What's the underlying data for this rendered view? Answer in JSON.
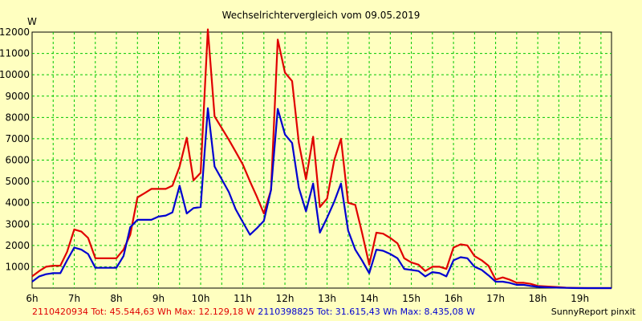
{
  "chart_data": {
    "type": "line",
    "title": "Wechselrichtervergleich vom 09.05.2019",
    "ylabel": "W",
    "xlabel": "",
    "ylim": [
      0,
      12000
    ],
    "xlim": [
      6.0,
      19.75
    ],
    "grid": true,
    "yticks": [
      1000,
      2000,
      3000,
      4000,
      5000,
      6000,
      7000,
      8000,
      9000,
      10000,
      11000,
      12000
    ],
    "xticks": [
      {
        "v": 6,
        "label": "6h"
      },
      {
        "v": 7,
        "label": "7h"
      },
      {
        "v": 8,
        "label": "8h"
      },
      {
        "v": 9,
        "label": "9h"
      },
      {
        "v": 10,
        "label": "10h"
      },
      {
        "v": 11,
        "label": "11h"
      },
      {
        "v": 12,
        "label": "12h"
      },
      {
        "v": 13,
        "label": "13h"
      },
      {
        "v": 14,
        "label": "14h"
      },
      {
        "v": 15,
        "label": "15h"
      },
      {
        "v": 16,
        "label": "16h"
      },
      {
        "v": 17,
        "label": "17h"
      },
      {
        "v": 18,
        "label": "18h"
      },
      {
        "v": 19,
        "label": "19h"
      }
    ],
    "series": [
      {
        "name": "2110420934 Tot: 45.544,63 Wh Max: 12.129,18 W",
        "color": "#e00000",
        "x": [
          6.0,
          6.17,
          6.33,
          6.5,
          6.67,
          6.83,
          7.0,
          7.17,
          7.33,
          7.5,
          7.67,
          7.83,
          8.0,
          8.17,
          8.33,
          8.5,
          8.67,
          8.83,
          9.0,
          9.17,
          9.33,
          9.5,
          9.67,
          9.83,
          10.0,
          10.17,
          10.33,
          10.5,
          10.67,
          10.83,
          11.0,
          11.17,
          11.33,
          11.5,
          11.67,
          11.83,
          12.0,
          12.17,
          12.33,
          12.5,
          12.67,
          12.83,
          13.0,
          13.17,
          13.33,
          13.5,
          13.67,
          13.83,
          14.0,
          14.17,
          14.33,
          14.5,
          14.67,
          14.83,
          15.0,
          15.17,
          15.33,
          15.5,
          15.67,
          15.83,
          16.0,
          16.17,
          16.33,
          16.5,
          16.67,
          16.83,
          17.0,
          17.17,
          17.33,
          17.5,
          17.67,
          17.83,
          18.0,
          18.17,
          18.33,
          18.5,
          18.67,
          18.83,
          19.0,
          19.17,
          19.33,
          19.5,
          19.67,
          19.75
        ],
        "y": [
          550,
          800,
          1000,
          1050,
          1050,
          1700,
          2750,
          2650,
          2350,
          1400,
          1400,
          1400,
          1400,
          1800,
          2500,
          4250,
          4450,
          4650,
          4650,
          4650,
          4800,
          5700,
          7050,
          5050,
          5400,
          12129,
          8050,
          7500,
          6950,
          6400,
          5800,
          5000,
          4300,
          3500,
          4600,
          11650,
          10100,
          9700,
          6800,
          5100,
          7100,
          3800,
          4200,
          6000,
          7000,
          4000,
          3900,
          2600,
          1100,
          2600,
          2550,
          2350,
          2100,
          1400,
          1200,
          1100,
          800,
          1000,
          1000,
          900,
          1900,
          2050,
          2000,
          1500,
          1300,
          1050,
          400,
          500,
          400,
          250,
          250,
          200,
          100,
          80,
          60,
          40,
          20,
          10,
          5,
          0,
          0,
          0,
          0,
          0
        ]
      },
      {
        "name": "2110398825 Tot: 31.615,43 Wh Max: 8.435,08 W",
        "color": "#0000d0",
        "x": [
          6.0,
          6.17,
          6.33,
          6.5,
          6.67,
          6.83,
          7.0,
          7.17,
          7.33,
          7.5,
          7.67,
          7.83,
          8.0,
          8.17,
          8.33,
          8.5,
          8.67,
          8.83,
          9.0,
          9.17,
          9.33,
          9.5,
          9.67,
          9.83,
          10.0,
          10.17,
          10.33,
          10.5,
          10.67,
          10.83,
          11.0,
          11.17,
          11.33,
          11.5,
          11.67,
          11.83,
          12.0,
          12.17,
          12.33,
          12.5,
          12.67,
          12.83,
          13.0,
          13.17,
          13.33,
          13.5,
          13.67,
          13.83,
          14.0,
          14.17,
          14.33,
          14.5,
          14.67,
          14.83,
          15.0,
          15.17,
          15.33,
          15.5,
          15.67,
          15.83,
          16.0,
          16.17,
          16.33,
          16.5,
          16.67,
          16.83,
          17.0,
          17.17,
          17.33,
          17.5,
          17.67,
          17.83,
          18.0,
          18.17,
          18.33,
          18.5,
          18.67,
          18.83,
          19.0,
          19.17,
          19.33,
          19.5,
          19.67,
          19.75
        ],
        "y": [
          300,
          550,
          650,
          700,
          700,
          1300,
          1900,
          1800,
          1600,
          950,
          950,
          950,
          950,
          1500,
          2850,
          3200,
          3200,
          3200,
          3350,
          3400,
          3550,
          4800,
          3500,
          3750,
          3800,
          8435,
          5700,
          5100,
          4500,
          3700,
          3100,
          2500,
          2800,
          3150,
          4600,
          8400,
          7200,
          6800,
          4700,
          3600,
          4900,
          2600,
          3300,
          4050,
          4900,
          2700,
          1800,
          1300,
          700,
          1800,
          1750,
          1600,
          1400,
          900,
          850,
          800,
          550,
          750,
          700,
          550,
          1300,
          1450,
          1400,
          1000,
          850,
          600,
          300,
          300,
          250,
          150,
          150,
          100,
          60,
          40,
          30,
          20,
          10,
          5,
          0,
          0,
          0,
          0,
          0,
          0
        ]
      }
    ]
  },
  "footer": {
    "red_label": "2110420934 Tot: 45.544,63 Wh Max: 12.129,18 W",
    "blue_label": "2110398825 Tot: 31.615,43 Wh Max: 8.435,08 W",
    "credit": "SunnyReport pinxit"
  },
  "colors": {
    "background": "#ffffc0",
    "grid": "#00c800",
    "red": "#e00000",
    "blue": "#0000d0"
  }
}
